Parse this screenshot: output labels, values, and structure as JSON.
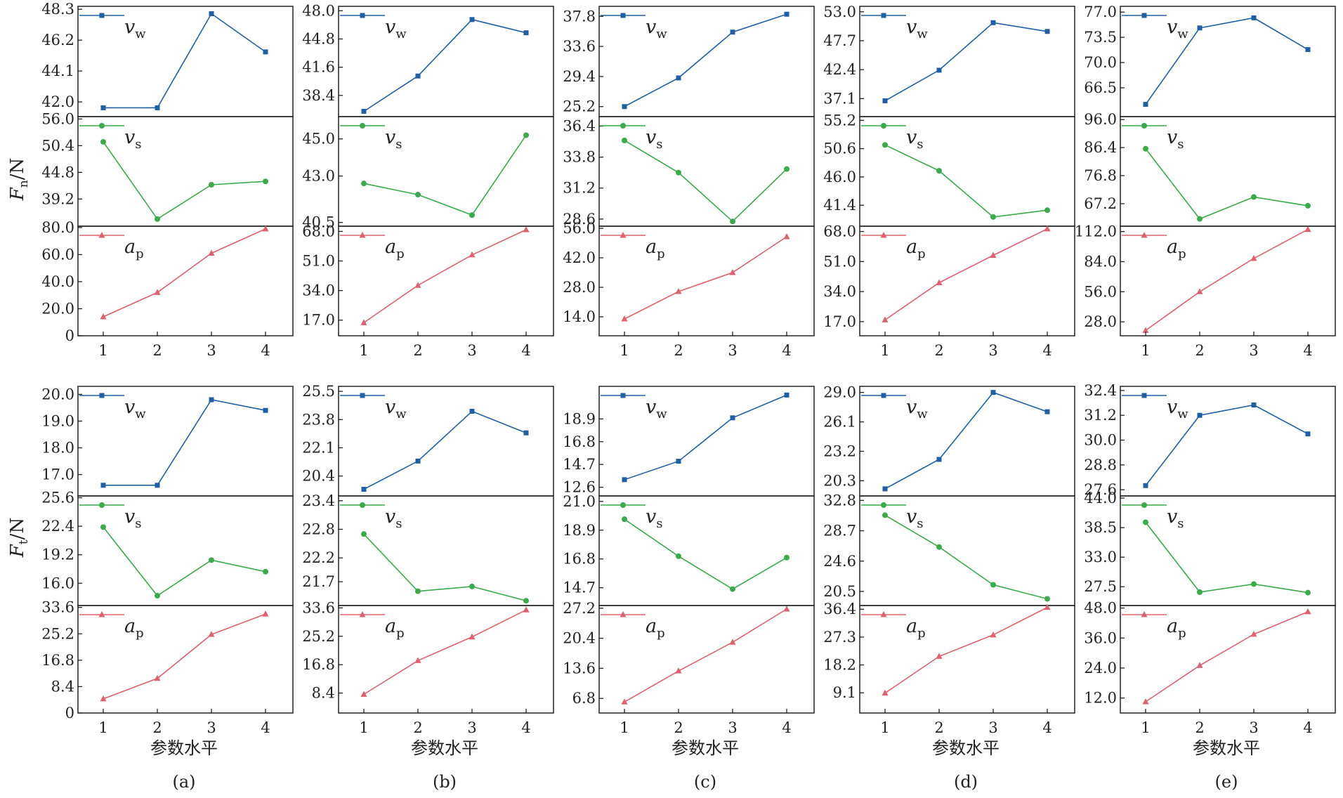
{
  "figure": {
    "captions": [
      "(a)",
      "(b)",
      "(c)",
      "(d)",
      "(e)"
    ],
    "xlabel": "参数水平",
    "ylabel_top": {
      "main": "F",
      "sub": "n",
      "unit": "/N"
    },
    "ylabel_bottom": {
      "main": "F",
      "sub": "t",
      "unit": "/N"
    }
  },
  "colors": {
    "vw": "#1f5fa6",
    "vs": "#3aab4a",
    "ap": "#e0606e"
  },
  "chart_data": [
    {
      "type": "line",
      "row": "Fn",
      "col": "(a)",
      "categories": [
        1,
        2,
        3,
        4
      ],
      "xlabel": "",
      "ylabel": "Fn/N",
      "panels": [
        {
          "series": "vw",
          "name": "vw",
          "marker": "square",
          "values": [
            41.6,
            41.6,
            48.0,
            45.4
          ],
          "ylim": [
            41.0,
            48.5
          ],
          "ticks": [
            "42.0",
            "44.1",
            "46.2",
            "48.3"
          ]
        },
        {
          "series": "vs",
          "name": "vs",
          "marker": "circle",
          "values": [
            51.2,
            35.0,
            42.2,
            42.9
          ],
          "ylim": [
            33.5,
            56.5
          ],
          "ticks": [
            "39.2",
            "44.8",
            "50.4",
            "56.0"
          ]
        },
        {
          "series": "ap",
          "name": "ap",
          "marker": "triangle",
          "values": [
            14.0,
            32.0,
            61.0,
            79.0
          ],
          "ylim": [
            0,
            81
          ],
          "ticks": [
            "0",
            "20.0",
            "40.0",
            "60.0",
            "80.0"
          ]
        }
      ]
    },
    {
      "type": "line",
      "row": "Fn",
      "col": "(b)",
      "categories": [
        1,
        2,
        3,
        4
      ],
      "xlabel": "",
      "ylabel": "",
      "panels": [
        {
          "series": "vw",
          "name": "vw",
          "marker": "square",
          "values": [
            36.6,
            40.6,
            47.0,
            45.5
          ],
          "ylim": [
            36.0,
            48.5
          ],
          "ticks": [
            "38.4",
            "41.6",
            "44.8",
            "48.0"
          ]
        },
        {
          "series": "vs",
          "name": "vs",
          "marker": "circle",
          "values": [
            42.6,
            42.0,
            40.9,
            45.2
          ],
          "ylim": [
            40.3,
            46.2
          ],
          "ticks": [
            "40.5",
            "43.0",
            "45.0"
          ]
        },
        {
          "series": "ap",
          "name": "ap",
          "marker": "triangle",
          "values": [
            15.5,
            37.0,
            54.5,
            69.0
          ],
          "ylim": [
            8,
            71
          ],
          "ticks": [
            "17.0",
            "34.0",
            "51.0",
            "68.0"
          ]
        }
      ]
    },
    {
      "type": "line",
      "row": "Fn",
      "col": "(c)",
      "categories": [
        1,
        2,
        3,
        4
      ],
      "xlabel": "",
      "ylabel": "",
      "panels": [
        {
          "series": "vw",
          "name": "vw",
          "marker": "square",
          "values": [
            25.2,
            29.2,
            35.6,
            38.1
          ],
          "ylim": [
            23.8,
            39.2
          ],
          "ticks": [
            "25.2",
            "29.4",
            "33.6",
            "37.8"
          ]
        },
        {
          "series": "vs",
          "name": "vs",
          "marker": "circle",
          "values": [
            35.2,
            32.5,
            28.4,
            32.8
          ],
          "ylim": [
            28.0,
            37.2
          ],
          "ticks": [
            "28.6",
            "31.2",
            "33.8",
            "36.4"
          ]
        },
        {
          "series": "ap",
          "name": "ap",
          "marker": "triangle",
          "values": [
            13.0,
            26.0,
            35.0,
            52.0
          ],
          "ylim": [
            5,
            57
          ],
          "ticks": [
            "14.0",
            "28.0",
            "42.0",
            "56.0"
          ]
        }
      ]
    },
    {
      "type": "line",
      "row": "Fn",
      "col": "(d)",
      "categories": [
        1,
        2,
        3,
        4
      ],
      "xlabel": "",
      "ylabel": "",
      "panels": [
        {
          "series": "vw",
          "name": "vw",
          "marker": "square",
          "values": [
            36.7,
            42.3,
            51.0,
            49.4
          ],
          "ylim": [
            33.8,
            54.0
          ],
          "ticks": [
            "37.1",
            "42.4",
            "47.7",
            "53.0"
          ]
        },
        {
          "series": "vs",
          "name": "vs",
          "marker": "circle",
          "values": [
            51.2,
            47.0,
            39.5,
            40.6
          ],
          "ylim": [
            38.0,
            55.8
          ],
          "ticks": [
            "41.4",
            "46.0",
            "50.6",
            "55.2"
          ]
        },
        {
          "series": "ap",
          "name": "ap",
          "marker": "triangle",
          "values": [
            18.0,
            39.0,
            54.5,
            69.5
          ],
          "ylim": [
            9,
            71
          ],
          "ticks": [
            "17.0",
            "34.0",
            "51.0",
            "68.0"
          ]
        }
      ]
    },
    {
      "type": "line",
      "row": "Fn",
      "col": "(e)",
      "categories": [
        1,
        2,
        3,
        4
      ],
      "xlabel": "",
      "ylabel": "",
      "panels": [
        {
          "series": "vw",
          "name": "vw",
          "marker": "square",
          "values": [
            64.2,
            74.8,
            76.2,
            71.8
          ],
          "ylim": [
            62.5,
            77.8
          ],
          "ticks": [
            "66.5",
            "70.0",
            "73.5",
            "77.0"
          ]
        },
        {
          "series": "vs",
          "name": "vs",
          "marker": "circle",
          "values": [
            86.0,
            62.0,
            69.5,
            66.5
          ],
          "ylim": [
            59.5,
            97.0
          ],
          "ticks": [
            "67.2",
            "76.8",
            "86.4",
            "96.0"
          ]
        },
        {
          "series": "ap",
          "name": "ap",
          "marker": "triangle",
          "values": [
            20.0,
            56.0,
            87.0,
            114.0
          ],
          "ylim": [
            15,
            117
          ],
          "ticks": [
            "28.0",
            "56.0",
            "84.0",
            "112.0"
          ]
        }
      ]
    },
    {
      "type": "line",
      "row": "Ft",
      "col": "(a)",
      "categories": [
        1,
        2,
        3,
        4
      ],
      "xlabel": "参数水平",
      "ylabel": "Ft/N",
      "panels": [
        {
          "series": "vw",
          "name": "vw",
          "marker": "square",
          "values": [
            16.6,
            16.6,
            19.8,
            19.4
          ],
          "ylim": [
            16.2,
            20.3
          ],
          "ticks": [
            "17.0",
            "18.0",
            "19.0",
            "20.0"
          ]
        },
        {
          "series": "vs",
          "name": "vs",
          "marker": "circle",
          "values": [
            22.3,
            14.6,
            18.6,
            17.3
          ],
          "ylim": [
            13.5,
            25.8
          ],
          "ticks": [
            "16.0",
            "19.2",
            "22.4",
            "25.6"
          ]
        },
        {
          "series": "ap",
          "name": "ap",
          "marker": "triangle",
          "values": [
            4.5,
            11.0,
            25.0,
            31.5
          ],
          "ylim": [
            0,
            34.2
          ],
          "ticks": [
            "0",
            "8.4",
            "16.8",
            "25.2",
            "33.6"
          ]
        }
      ]
    },
    {
      "type": "line",
      "row": "Ft",
      "col": "(b)",
      "categories": [
        1,
        2,
        3,
        4
      ],
      "xlabel": "参数水平",
      "ylabel": "",
      "panels": [
        {
          "series": "vw",
          "name": "vw",
          "marker": "square",
          "values": [
            19.6,
            21.3,
            24.3,
            23.0
          ],
          "ylim": [
            19.2,
            25.8
          ],
          "ticks": [
            "20.4",
            "22.1",
            "23.8",
            "25.5"
          ]
        },
        {
          "series": "vs",
          "name": "vs",
          "marker": "circle",
          "values": [
            22.7,
            21.5,
            21.6,
            21.3
          ],
          "ylim": [
            21.2,
            23.5
          ],
          "ticks": [
            "21.7",
            "22.2",
            "22.8",
            "23.4"
          ]
        },
        {
          "series": "ap",
          "name": "ap",
          "marker": "triangle",
          "values": [
            8.0,
            18.0,
            25.0,
            33.0
          ],
          "ylim": [
            2.5,
            34.3
          ],
          "ticks": [
            "8.4",
            "16.8",
            "25.2",
            "33.6"
          ]
        }
      ]
    },
    {
      "type": "line",
      "row": "Ft",
      "col": "(c)",
      "categories": [
        1,
        2,
        3,
        4
      ],
      "xlabel": "参数水平",
      "ylabel": "",
      "panels": [
        {
          "series": "vw",
          "name": "vw",
          "marker": "square",
          "values": [
            13.3,
            15.0,
            19.0,
            21.1
          ],
          "ylim": [
            11.8,
            21.9
          ],
          "ticks": [
            "12.6",
            "14.7",
            "16.8",
            "18.9"
          ]
        },
        {
          "series": "vs",
          "name": "vs",
          "marker": "circle",
          "values": [
            19.7,
            17.0,
            14.6,
            16.9
          ],
          "ylim": [
            13.4,
            21.4
          ],
          "ticks": [
            "14.7",
            "16.8",
            "18.9",
            "21.0"
          ]
        },
        {
          "series": "ap",
          "name": "ap",
          "marker": "triangle",
          "values": [
            6.0,
            13.0,
            19.5,
            27.0
          ],
          "ylim": [
            3.5,
            27.8
          ],
          "ticks": [
            "6.8",
            "13.6",
            "20.4",
            "27.2"
          ]
        }
      ]
    },
    {
      "type": "line",
      "row": "Ft",
      "col": "(d)",
      "categories": [
        1,
        2,
        3,
        4
      ],
      "xlabel": "参数水平",
      "ylabel": "",
      "panels": [
        {
          "series": "vw",
          "name": "vw",
          "marker": "square",
          "values": [
            19.5,
            22.4,
            29.0,
            27.1
          ],
          "ylim": [
            18.8,
            29.6
          ],
          "ticks": [
            "20.3",
            "23.2",
            "26.1",
            "29.0"
          ]
        },
        {
          "series": "vs",
          "name": "vs",
          "marker": "circle",
          "values": [
            30.8,
            26.5,
            21.4,
            19.5
          ],
          "ylim": [
            18.6,
            33.4
          ],
          "ticks": [
            "20.5",
            "24.6",
            "28.7",
            "32.8"
          ]
        },
        {
          "series": "ap",
          "name": "ap",
          "marker": "triangle",
          "values": [
            9.0,
            21.0,
            28.0,
            37.0
          ],
          "ylim": [
            2.5,
            37.6
          ],
          "ticks": [
            "9.1",
            "18.2",
            "27.3",
            "36.4"
          ]
        }
      ]
    },
    {
      "type": "line",
      "row": "Ft",
      "col": "(e)",
      "categories": [
        1,
        2,
        3,
        4
      ],
      "xlabel": "参数水平",
      "ylabel": "",
      "panels": [
        {
          "series": "vw",
          "name": "vw",
          "marker": "square",
          "values": [
            27.8,
            31.2,
            31.7,
            30.3
          ],
          "ylim": [
            27.3,
            32.6
          ],
          "ticks": [
            "27.6",
            "28.8",
            "30.0",
            "31.2",
            "32.4"
          ]
        },
        {
          "series": "vs",
          "name": "vs",
          "marker": "circle",
          "values": [
            39.5,
            26.5,
            28.0,
            26.4
          ],
          "ylim": [
            24.0,
            44.4
          ],
          "ticks": [
            "27.5",
            "33.0",
            "38.5",
            "44.0"
          ]
        },
        {
          "series": "ap",
          "name": "ap",
          "marker": "triangle",
          "values": [
            10.5,
            25.0,
            37.5,
            46.5
          ],
          "ylim": [
            6,
            49
          ],
          "ticks": [
            "12.0",
            "24.0",
            "36.0",
            "48.0"
          ]
        }
      ]
    }
  ]
}
